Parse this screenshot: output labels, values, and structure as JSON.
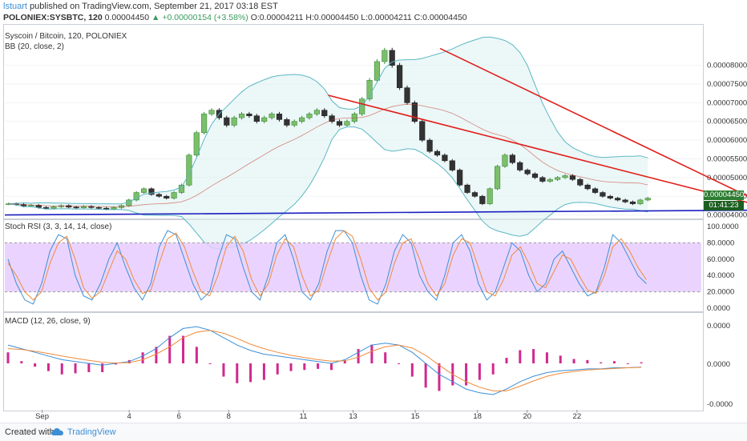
{
  "header": {
    "author": "lstuart",
    "published": "published on TradingView.com, September 21, 2017 03:18 EST",
    "symbol": "POLONIEX:SYSBTC, 120",
    "last": "0.00004450",
    "change_arrow": "▲",
    "change": "+0.00000154 (+3.58%)",
    "ohlc": "O:0.00004211 H:0.00004450 L:0.00004211 C:0.00004450"
  },
  "panes": {
    "price_title": "Syscoin / Bitcoin, 120, POLONIEX",
    "bb_title": "BB (20, close, 2)",
    "rsi_title": "Stoch RSI (3, 3, 14, 14, close)",
    "macd_title": "MACD (12, 26, close, 9)",
    "price_badge": "0.00004450",
    "time_badge": "01:41:23"
  },
  "footer": {
    "created_with": "Created with",
    "brand": "TradingView"
  },
  "colors": {
    "bull": "#3d8b3d",
    "bear": "#222222",
    "bb_band": "#5cb8c4",
    "bb_fill": "#dff2f1",
    "trend_red": "#e0201c",
    "support_blue": "#1a1fbf",
    "rsi_fill": "#e6ccff",
    "rsi_k": "#3c8fd6",
    "rsi_d": "#ef8a3a",
    "macd_hist": "#d0288f",
    "price_badge": "#2e7d32",
    "time_badge": "#1b5e20"
  },
  "chart_data": [
    {
      "type": "line",
      "name": "price",
      "x_ticks": [
        "Sep",
        "4",
        "6",
        "8",
        "11",
        "13",
        "15",
        "18",
        "20",
        "22"
      ],
      "y_ticks": [
        "0.00008000",
        "0.00007500",
        "0.00007000",
        "0.00006500",
        "0.00006000",
        "0.00005500",
        "0.00005000",
        "0.00004500",
        "0.00004000"
      ],
      "ylim": [
        3.97e-05,
        9.04e-05
      ],
      "x_range_days": [
        0,
        28
      ],
      "candles_close": [
        4.3e-05,
        4.28e-05,
        4.24e-05,
        4.26e-05,
        4.2e-05,
        4.18e-05,
        4.22e-05,
        4.25e-05,
        4.21e-05,
        4.19e-05,
        4.23e-05,
        4.2e-05,
        4.18e-05,
        4.16e-05,
        4.2e-05,
        4.25e-05,
        4.4e-05,
        4.6e-05,
        4.7e-05,
        4.55e-05,
        4.5e-05,
        4.45e-05,
        4.6e-05,
        4.8e-05,
        5.6e-05,
        6.2e-05,
        6.7e-05,
        6.8e-05,
        6.6e-05,
        6.4e-05,
        6.6e-05,
        6.7e-05,
        6.65e-05,
        6.5e-05,
        6.6e-05,
        6.7e-05,
        6.55e-05,
        6.4e-05,
        6.5e-05,
        6.6e-05,
        6.7e-05,
        6.8e-05,
        6.65e-05,
        6.5e-05,
        6.4e-05,
        6.5e-05,
        6.7e-05,
        7.1e-05,
        7.6e-05,
        8.1e-05,
        8.4e-05,
        8e-05,
        7.4e-05,
        7e-05,
        6.5e-05,
        6e-05,
        5.7e-05,
        5.6e-05,
        5.45e-05,
        5.2e-05,
        4.8e-05,
        4.6e-05,
        4.5e-05,
        4.3e-05,
        4.7e-05,
        5.3e-05,
        5.6e-05,
        5.4e-05,
        5.2e-05,
        5.1e-05,
        5e-05,
        4.9e-05,
        4.95e-05,
        5e-05,
        5.05e-05,
        4.95e-05,
        4.8e-05,
        4.7e-05,
        4.6e-05,
        4.5e-05,
        4.45e-05,
        4.4e-05,
        4.35e-05,
        4.3e-05,
        4.4e-05,
        4.45e-05
      ],
      "trendlines": [
        {
          "color": "trend_red",
          "from": [
            13,
            7.2e-05
          ],
          "to": [
            31,
            4.14e-05
          ]
        },
        {
          "color": "trend_red",
          "from": [
            17.5,
            8.45e-05
          ],
          "to": [
            31,
            4.14e-05
          ]
        },
        {
          "color": "support_blue",
          "from": [
            0,
            4e-05
          ],
          "to": [
            33,
            4.14e-05
          ]
        }
      ]
    },
    {
      "type": "line",
      "name": "stoch_rsi",
      "y_ticks": [
        "100.0000",
        "80.0000",
        "60.0000",
        "40.0000",
        "20.0000",
        "0.0000"
      ],
      "ylim": [
        0,
        100
      ],
      "band": [
        20,
        80
      ],
      "k": [
        60,
        30,
        10,
        5,
        30,
        70,
        90,
        85,
        40,
        15,
        10,
        30,
        60,
        80,
        50,
        25,
        10,
        30,
        75,
        95,
        90,
        60,
        30,
        10,
        20,
        60,
        90,
        85,
        50,
        20,
        10,
        40,
        80,
        90,
        60,
        20,
        10,
        30,
        70,
        95,
        95,
        80,
        40,
        10,
        5,
        30,
        70,
        90,
        80,
        40,
        20,
        10,
        40,
        80,
        90,
        70,
        30,
        10,
        20,
        50,
        80,
        70,
        40,
        20,
        30,
        60,
        70,
        50,
        30,
        15,
        20,
        50,
        90,
        80,
        60,
        40,
        30
      ],
      "d": [
        55,
        40,
        20,
        10,
        20,
        55,
        80,
        88,
        60,
        25,
        12,
        20,
        45,
        70,
        60,
        35,
        18,
        22,
        55,
        85,
        92,
        75,
        45,
        20,
        15,
        40,
        75,
        88,
        70,
        35,
        15,
        30,
        65,
        85,
        75,
        40,
        15,
        22,
        55,
        85,
        95,
        88,
        60,
        25,
        10,
        20,
        55,
        80,
        85,
        60,
        30,
        15,
        30,
        65,
        85,
        80,
        50,
        20,
        15,
        35,
        65,
        75,
        55,
        30,
        25,
        45,
        65,
        60,
        40,
        22,
        18,
        40,
        75,
        85,
        70,
        50,
        35
      ]
    },
    {
      "type": "line",
      "name": "macd",
      "y_ticks": [
        "0.0000",
        "0.0000",
        "-0.0000"
      ],
      "ylim": [
        -1,
        1
      ],
      "macd": [
        0.5,
        0.4,
        0.3,
        0.2,
        0.1,
        0.05,
        0.0,
        -0.05,
        0.0,
        0.05,
        0.2,
        0.4,
        0.7,
        0.95,
        1.0,
        0.9,
        0.7,
        0.5,
        0.35,
        0.25,
        0.2,
        0.15,
        0.1,
        0.05,
        0.0,
        0.1,
        0.3,
        0.5,
        0.55,
        0.5,
        0.3,
        0.0,
        -0.3,
        -0.5,
        -0.7,
        -0.8,
        -0.85,
        -0.7,
        -0.5,
        -0.35,
        -0.25,
        -0.2,
        -0.18,
        -0.15,
        -0.15,
        -0.12,
        -0.12,
        -0.1
      ],
      "signal": [
        0.4,
        0.38,
        0.33,
        0.27,
        0.2,
        0.14,
        0.08,
        0.03,
        0.01,
        0.02,
        0.1,
        0.25,
        0.45,
        0.7,
        0.85,
        0.9,
        0.82,
        0.68,
        0.52,
        0.4,
        0.3,
        0.22,
        0.16,
        0.1,
        0.06,
        0.07,
        0.17,
        0.33,
        0.45,
        0.5,
        0.42,
        0.22,
        -0.05,
        -0.3,
        -0.5,
        -0.65,
        -0.75,
        -0.75,
        -0.62,
        -0.48,
        -0.35,
        -0.27,
        -0.22,
        -0.18,
        -0.16,
        -0.14,
        -0.12,
        -0.11
      ]
    }
  ]
}
